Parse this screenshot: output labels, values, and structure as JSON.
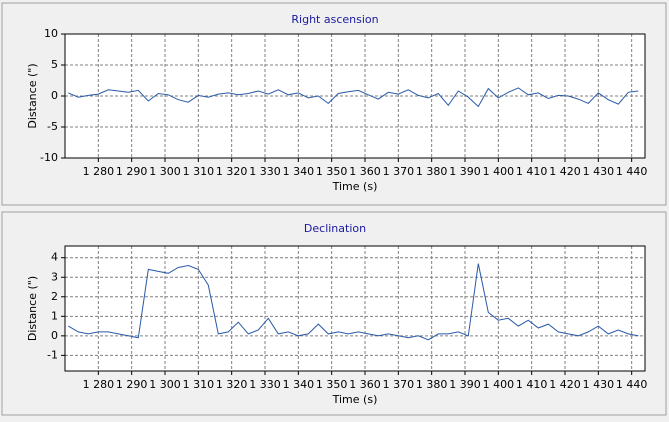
{
  "chart_data": [
    {
      "type": "line",
      "title": "Right ascension",
      "xlabel": "Time (s)",
      "ylabel": "Distance (\")",
      "x": [
        1271,
        1274,
        1277,
        1280,
        1283,
        1286,
        1289,
        1292,
        1295,
        1298,
        1301,
        1304,
        1307,
        1310,
        1313,
        1316,
        1319,
        1322,
        1325,
        1328,
        1331,
        1334,
        1337,
        1340,
        1343,
        1346,
        1349,
        1352,
        1355,
        1358,
        1361,
        1364,
        1367,
        1370,
        1373,
        1376,
        1379,
        1382,
        1385,
        1388,
        1391,
        1394,
        1397,
        1400,
        1403,
        1406,
        1409,
        1412,
        1415,
        1418,
        1421,
        1424,
        1427,
        1430,
        1433,
        1436,
        1439,
        1442
      ],
      "values": [
        0.5,
        -0.2,
        0.1,
        0.3,
        1,
        0.8,
        0.6,
        0.9,
        -0.8,
        0.4,
        0.2,
        -0.6,
        -1,
        0.1,
        -0.2,
        0.3,
        0.5,
        0.2,
        0.4,
        0.8,
        0.3,
        1,
        0.2,
        0.5,
        -0.3,
        0,
        -1.2,
        0.4,
        0.7,
        0.9,
        0.2,
        -0.5,
        0.6,
        0.3,
        1,
        0.1,
        -0.3,
        0.4,
        -1.5,
        0.8,
        -0.2,
        -1.7,
        1.2,
        -0.3,
        0.6,
        1.3,
        0.2,
        0.5,
        -0.4,
        0.1,
        0,
        -0.5,
        -1.2,
        0.5,
        -0.6,
        -1.3,
        0.6,
        0.8
      ],
      "color": "#2a5aa8",
      "grid": true,
      "xlim": [
        1270,
        1444
      ],
      "xticks": [
        {
          "value": 1280,
          "label": "1 280"
        },
        {
          "value": 1290,
          "label": "1 290"
        },
        {
          "value": 1300,
          "label": "1 300"
        },
        {
          "value": 1310,
          "label": "1 310"
        },
        {
          "value": 1320,
          "label": "1 320"
        },
        {
          "value": 1330,
          "label": "1 330"
        },
        {
          "value": 1340,
          "label": "1 340"
        },
        {
          "value": 1350,
          "label": "1 350"
        },
        {
          "value": 1360,
          "label": "1 360"
        },
        {
          "value": 1370,
          "label": "1 370"
        },
        {
          "value": 1380,
          "label": "1 380"
        },
        {
          "value": 1390,
          "label": "1 390"
        },
        {
          "value": 1400,
          "label": "1 400"
        },
        {
          "value": 1410,
          "label": "1 410"
        },
        {
          "value": 1420,
          "label": "1 420"
        },
        {
          "value": 1430,
          "label": "1 430"
        },
        {
          "value": 1440,
          "label": "1 440"
        }
      ],
      "ylim": [
        -10,
        10
      ],
      "yticks": [
        -10,
        -5,
        0,
        5,
        10
      ]
    },
    {
      "type": "line",
      "title": "Declination",
      "xlabel": "Time (s)",
      "ylabel": "Distance (\")",
      "x": [
        1271,
        1274,
        1277,
        1280,
        1283,
        1286,
        1289,
        1292,
        1295,
        1298,
        1301,
        1304,
        1307,
        1310,
        1313,
        1316,
        1319,
        1322,
        1325,
        1328,
        1331,
        1334,
        1337,
        1340,
        1343,
        1346,
        1349,
        1352,
        1355,
        1358,
        1361,
        1364,
        1367,
        1370,
        1373,
        1376,
        1379,
        1382,
        1385,
        1388,
        1391,
        1394,
        1397,
        1400,
        1403,
        1406,
        1409,
        1412,
        1415,
        1418,
        1421,
        1424,
        1427,
        1430,
        1433,
        1436,
        1439,
        1442
      ],
      "values": [
        0.5,
        0.2,
        0.1,
        0.2,
        0.2,
        0.1,
        0,
        -0.1,
        3.4,
        3.3,
        3.2,
        3.5,
        3.6,
        3.4,
        2.6,
        0.1,
        0.2,
        0.7,
        0.1,
        0.3,
        0.9,
        0.1,
        0.2,
        0,
        0.1,
        0.6,
        0.1,
        0.2,
        0.1,
        0.2,
        0.1,
        0,
        0.1,
        0,
        -0.1,
        0,
        -0.2,
        0.1,
        0.1,
        0.2,
        0,
        3.7,
        1.2,
        0.8,
        0.9,
        0.5,
        0.8,
        0.4,
        0.6,
        0.2,
        0.1,
        0,
        0.2,
        0.5,
        0.1,
        0.3,
        0.1,
        0
      ],
      "color": "#2a5aa8",
      "grid": true,
      "xlim": [
        1270,
        1444
      ],
      "xticks": [
        {
          "value": 1280,
          "label": "1 280"
        },
        {
          "value": 1290,
          "label": "1 290"
        },
        {
          "value": 1300,
          "label": "1 300"
        },
        {
          "value": 1310,
          "label": "1 310"
        },
        {
          "value": 1320,
          "label": "1 320"
        },
        {
          "value": 1330,
          "label": "1 330"
        },
        {
          "value": 1340,
          "label": "1 340"
        },
        {
          "value": 1350,
          "label": "1 350"
        },
        {
          "value": 1360,
          "label": "1 360"
        },
        {
          "value": 1370,
          "label": "1 370"
        },
        {
          "value": 1380,
          "label": "1 380"
        },
        {
          "value": 1390,
          "label": "1 390"
        },
        {
          "value": 1400,
          "label": "1 400"
        },
        {
          "value": 1410,
          "label": "1 410"
        },
        {
          "value": 1420,
          "label": "1 420"
        },
        {
          "value": 1430,
          "label": "1 430"
        },
        {
          "value": 1440,
          "label": "1 440"
        }
      ],
      "ylim": [
        -1.8,
        4.6
      ],
      "yticks": [
        -1,
        0,
        1,
        2,
        3,
        4
      ]
    }
  ]
}
